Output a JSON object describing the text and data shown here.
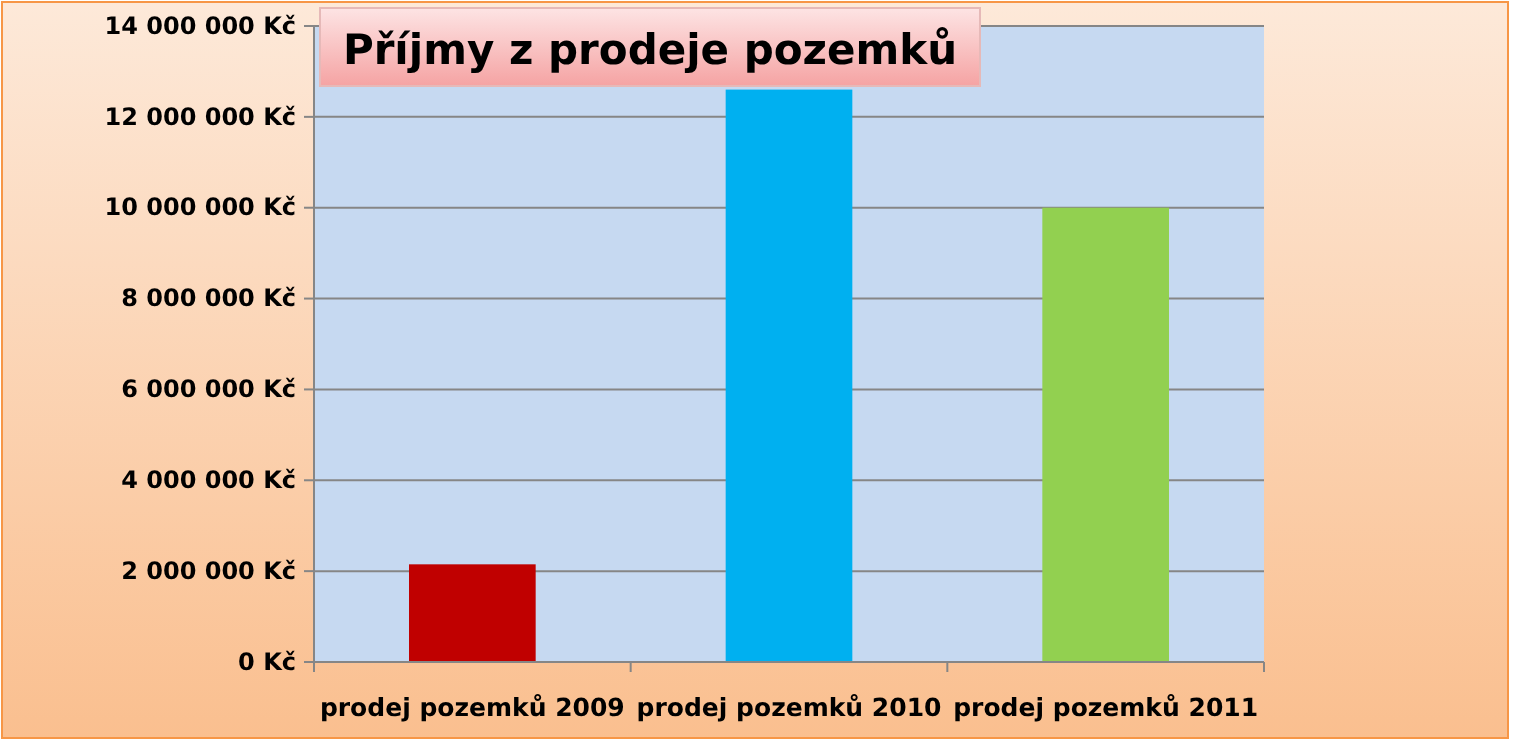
{
  "chart_data": {
    "type": "bar",
    "title": "Příjmy z prodeje pozemků",
    "categories": [
      "prodej pozemků 2009",
      "prodej pozemků 2010",
      "prodej pozemků 2011"
    ],
    "values": [
      2150000,
      12600000,
      10000000
    ],
    "colors": [
      "#c00000",
      "#00b0f0",
      "#92d050"
    ],
    "ylim": [
      0,
      14000000
    ],
    "yticks": [
      {
        "value": 0,
        "label": "0 Kč"
      },
      {
        "value": 2000000,
        "label": "2 000 000 Kč"
      },
      {
        "value": 4000000,
        "label": "4 000 000 Kč"
      },
      {
        "value": 6000000,
        "label": "6 000 000 Kč"
      },
      {
        "value": 8000000,
        "label": "8 000 000 Kč"
      },
      {
        "value": 10000000,
        "label": "10 000 000 Kč"
      },
      {
        "value": 12000000,
        "label": "12 000 000 Kč"
      },
      {
        "value": 14000000,
        "label": "14 000 000 Kč"
      }
    ],
    "grid": "y"
  }
}
